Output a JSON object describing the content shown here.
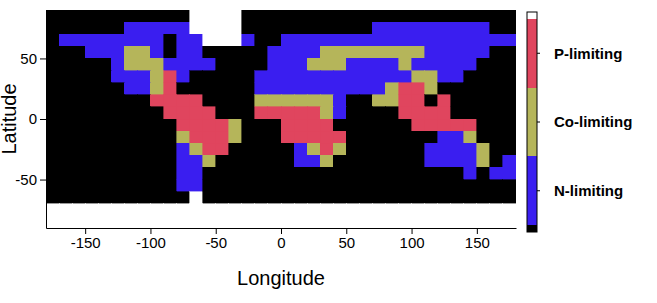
{
  "chart_data": {
    "type": "heatmap",
    "xlabel": "Longitude",
    "ylabel": "Latitude",
    "xlim": [
      -180,
      180
    ],
    "ylim": [
      -90,
      90
    ],
    "xticks": [
      -150,
      -100,
      -50,
      0,
      50,
      100,
      150
    ],
    "yticks": [
      -50,
      0,
      50
    ],
    "x_bins": [
      -180,
      -170,
      -160,
      -150,
      -140,
      -130,
      -120,
      -110,
      -100,
      -90,
      -80,
      -70,
      -60,
      -50,
      -40,
      -30,
      -20,
      -10,
      0,
      10,
      20,
      30,
      40,
      50,
      60,
      70,
      80,
      90,
      100,
      110,
      120,
      130,
      140,
      150,
      160,
      170,
      180
    ],
    "y_bins": [
      90,
      80,
      70,
      60,
      50,
      40,
      30,
      20,
      10,
      0,
      -10,
      -20,
      -30,
      -40,
      -50,
      -60,
      -70,
      -80,
      -90
    ],
    "cells": [
      [
        0,
        0,
        0,
        0,
        0,
        0,
        0,
        0,
        0,
        0,
        0,
        4,
        4,
        4,
        4,
        0,
        0,
        0,
        0,
        0,
        0,
        0,
        0,
        0,
        0,
        0,
        0,
        0,
        0,
        0,
        0,
        0,
        0,
        0,
        0,
        0
      ],
      [
        0,
        0,
        0,
        0,
        0,
        0,
        1,
        1,
        1,
        1,
        1,
        4,
        4,
        4,
        4,
        0,
        0,
        0,
        0,
        0,
        0,
        0,
        0,
        0,
        0,
        1,
        1,
        1,
        1,
        1,
        1,
        1,
        1,
        1,
        0,
        0
      ],
      [
        0,
        1,
        1,
        1,
        1,
        1,
        1,
        1,
        1,
        0,
        1,
        1,
        4,
        4,
        4,
        1,
        0,
        0,
        1,
        1,
        1,
        1,
        1,
        1,
        1,
        1,
        1,
        1,
        1,
        1,
        1,
        1,
        1,
        1,
        1,
        1
      ],
      [
        0,
        0,
        0,
        1,
        1,
        1,
        2,
        2,
        1,
        0,
        1,
        1,
        0,
        0,
        0,
        0,
        0,
        1,
        1,
        1,
        1,
        2,
        2,
        2,
        2,
        2,
        2,
        2,
        2,
        1,
        1,
        1,
        1,
        1,
        0,
        0
      ],
      [
        0,
        0,
        0,
        0,
        0,
        1,
        2,
        2,
        2,
        1,
        1,
        1,
        1,
        0,
        0,
        0,
        0,
        1,
        1,
        1,
        2,
        2,
        2,
        1,
        1,
        1,
        1,
        2,
        1,
        1,
        1,
        1,
        1,
        0,
        0,
        0
      ],
      [
        0,
        0,
        0,
        0,
        0,
        1,
        1,
        1,
        2,
        3,
        1,
        0,
        0,
        0,
        0,
        0,
        1,
        1,
        1,
        1,
        1,
        1,
        1,
        1,
        1,
        1,
        1,
        1,
        2,
        2,
        1,
        1,
        0,
        0,
        0,
        0
      ],
      [
        0,
        0,
        0,
        0,
        0,
        0,
        1,
        1,
        2,
        3,
        0,
        0,
        0,
        0,
        0,
        0,
        1,
        1,
        1,
        1,
        1,
        1,
        1,
        1,
        1,
        1,
        2,
        3,
        3,
        2,
        0,
        0,
        0,
        0,
        0,
        0
      ],
      [
        0,
        0,
        0,
        0,
        0,
        0,
        0,
        0,
        3,
        3,
        3,
        3,
        0,
        0,
        0,
        0,
        2,
        2,
        2,
        2,
        2,
        2,
        1,
        0,
        0,
        2,
        2,
        3,
        3,
        0,
        3,
        0,
        0,
        0,
        0,
        0
      ],
      [
        0,
        0,
        0,
        0,
        0,
        0,
        0,
        0,
        0,
        3,
        3,
        3,
        3,
        0,
        0,
        0,
        3,
        3,
        3,
        3,
        3,
        2,
        1,
        0,
        0,
        0,
        0,
        3,
        3,
        3,
        3,
        0,
        0,
        0,
        0,
        0
      ],
      [
        0,
        0,
        0,
        0,
        0,
        0,
        0,
        0,
        0,
        0,
        3,
        3,
        3,
        3,
        2,
        0,
        0,
        0,
        3,
        3,
        3,
        3,
        0,
        0,
        0,
        0,
        0,
        0,
        3,
        3,
        3,
        3,
        3,
        0,
        0,
        0
      ],
      [
        0,
        0,
        0,
        0,
        0,
        0,
        0,
        0,
        0,
        0,
        2,
        3,
        3,
        3,
        2,
        0,
        0,
        0,
        3,
        3,
        3,
        3,
        3,
        0,
        0,
        0,
        0,
        0,
        0,
        0,
        1,
        1,
        2,
        0,
        0,
        0
      ],
      [
        0,
        0,
        0,
        0,
        0,
        0,
        0,
        0,
        0,
        0,
        1,
        2,
        3,
        3,
        0,
        0,
        0,
        0,
        0,
        1,
        2,
        3,
        2,
        0,
        0,
        0,
        0,
        0,
        0,
        1,
        1,
        1,
        1,
        2,
        0,
        0
      ],
      [
        0,
        0,
        0,
        0,
        0,
        0,
        0,
        0,
        0,
        0,
        1,
        1,
        2,
        0,
        0,
        0,
        0,
        0,
        0,
        1,
        1,
        2,
        0,
        0,
        0,
        0,
        0,
        0,
        0,
        1,
        1,
        1,
        1,
        2,
        0,
        1
      ],
      [
        0,
        0,
        0,
        0,
        0,
        0,
        0,
        0,
        0,
        0,
        1,
        1,
        0,
        0,
        0,
        0,
        0,
        0,
        0,
        0,
        0,
        0,
        0,
        0,
        0,
        0,
        0,
        0,
        0,
        0,
        0,
        0,
        1,
        0,
        1,
        1
      ],
      [
        0,
        0,
        0,
        0,
        0,
        0,
        0,
        0,
        0,
        0,
        1,
        1,
        0,
        0,
        0,
        0,
        0,
        0,
        0,
        0,
        0,
        0,
        0,
        0,
        0,
        0,
        0,
        0,
        0,
        0,
        0,
        0,
        0,
        0,
        0,
        0
      ],
      [
        0,
        0,
        0,
        0,
        0,
        0,
        0,
        0,
        0,
        0,
        0,
        4,
        0,
        0,
        0,
        0,
        0,
        0,
        0,
        0,
        0,
        0,
        0,
        0,
        0,
        0,
        0,
        0,
        0,
        0,
        0,
        0,
        0,
        0,
        0,
        0
      ],
      [
        4,
        4,
        4,
        4,
        4,
        4,
        4,
        4,
        4,
        4,
        4,
        4,
        4,
        4,
        4,
        4,
        4,
        4,
        4,
        4,
        4,
        4,
        4,
        4,
        4,
        4,
        4,
        4,
        4,
        4,
        4,
        4,
        4,
        4,
        4,
        4
      ],
      [
        4,
        4,
        4,
        4,
        4,
        4,
        4,
        4,
        4,
        4,
        4,
        4,
        4,
        4,
        4,
        4,
        4,
        4,
        4,
        4,
        4,
        4,
        4,
        4,
        4,
        4,
        4,
        4,
        4,
        4,
        4,
        4,
        4,
        4,
        4,
        4
      ]
    ],
    "color_scale": {
      "values": [
        0,
        1,
        2,
        3,
        4
      ],
      "colors": [
        "#000000",
        "#3a1ef0",
        "#b5b55a",
        "#e0455e",
        "#ffffff"
      ]
    },
    "colorbar": {
      "range": [
        0.4,
        3.6
      ],
      "ticks": [
        {
          "value": 3,
          "label": "P-limiting"
        },
        {
          "value": 2,
          "label": "Co-limiting"
        },
        {
          "value": 1,
          "label": "N-limiting"
        }
      ]
    }
  }
}
